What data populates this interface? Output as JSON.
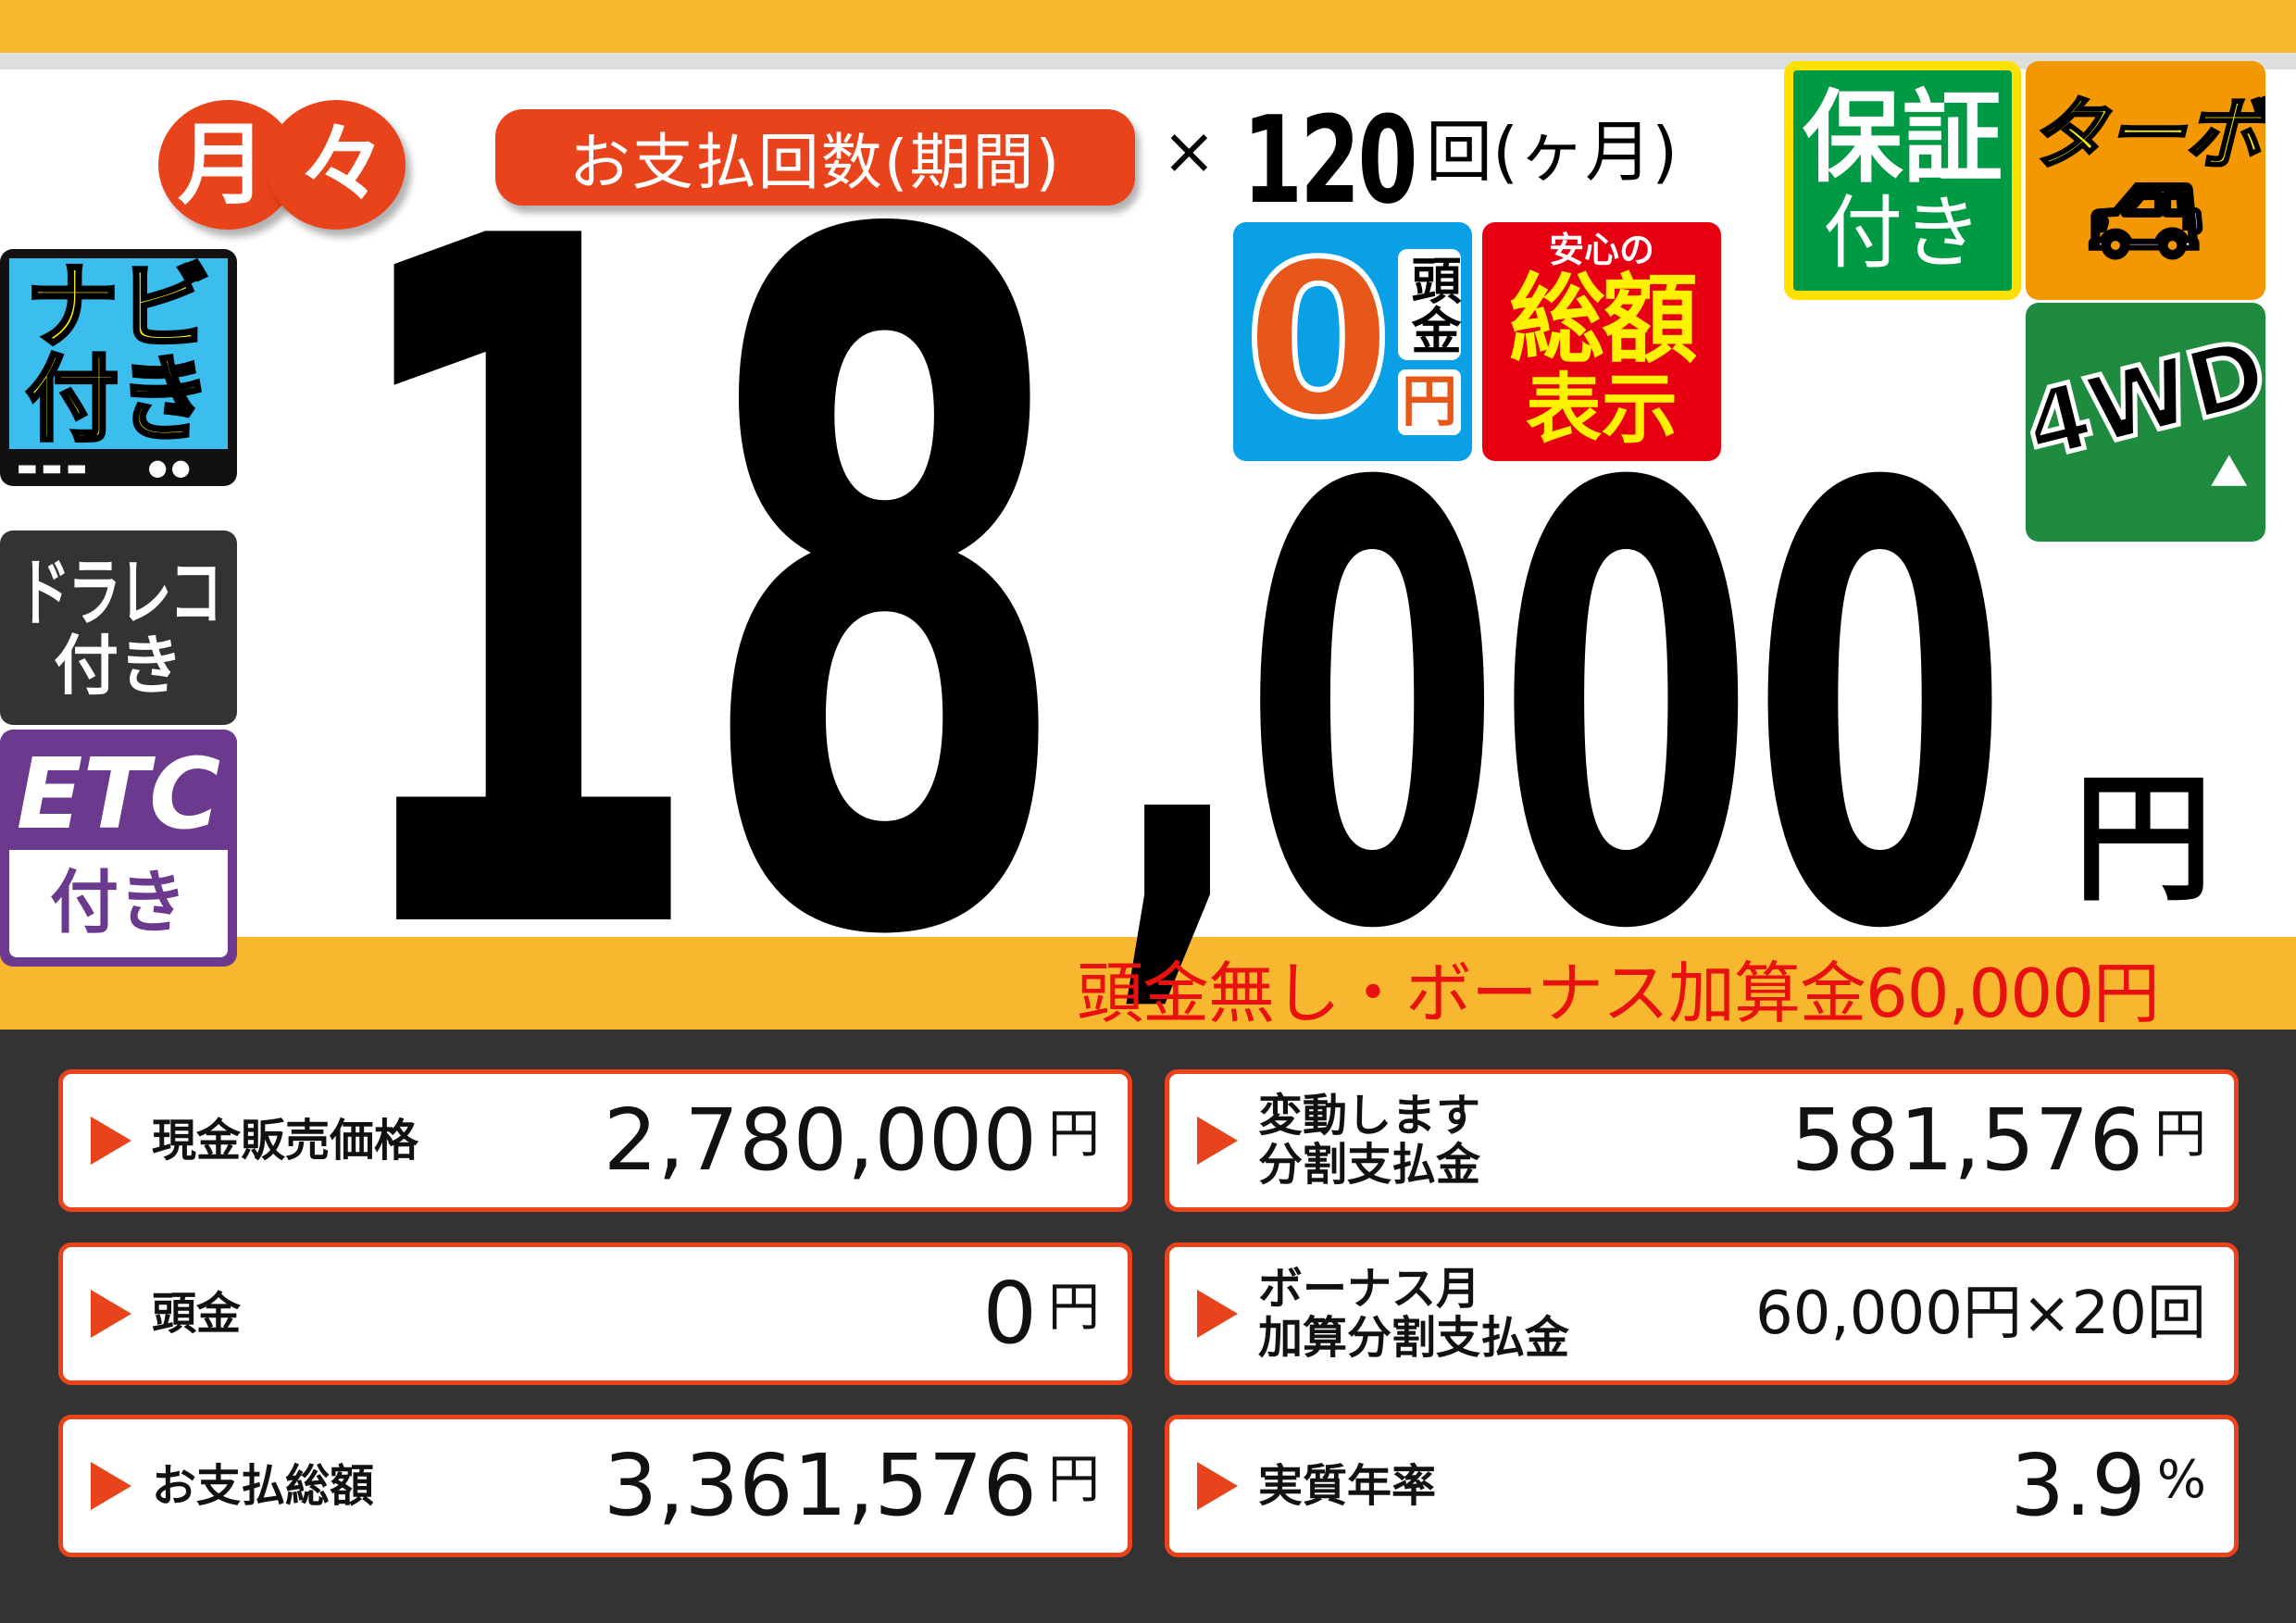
{
  "header": {
    "monthly_label": [
      "月",
      "々"
    ],
    "payment_count_label": "お支払回数(期間)",
    "times_symbol": "×",
    "payment_count": "120",
    "payment_count_unit": "回(ヶ月)"
  },
  "price": {
    "main_digits": "18",
    "rest_digits": ",000",
    "unit": "円",
    "bonus_note": "頭金無し・ボーナス加算金60,000円"
  },
  "badges": {
    "navi": {
      "line1": "ナビ",
      "line2": "付き"
    },
    "drarec": {
      "line1": "ドラレコ",
      "line2": "付き"
    },
    "etc": {
      "line1": "ETC",
      "line2": "付き"
    },
    "down_payment_zero": {
      "zero": "0",
      "label": "頭金",
      "unit": "円"
    },
    "total_display": {
      "small": "安心の",
      "main": "総額",
      "sub": "表示"
    },
    "warranty": {
      "line1": "保証",
      "line2": "付き"
    },
    "turbo": {
      "label": "ターボ",
      "icon": "car-icon"
    },
    "four_wd": {
      "label": "4WD",
      "icon": "offroad-car-icon"
    }
  },
  "details": [
    {
      "label": "現金販売価格",
      "value": "2,780,000",
      "unit": "円"
    },
    {
      "label": "変動します\n分割支払金",
      "value": "581,576",
      "unit": "円"
    },
    {
      "label": "頭金",
      "value": "0",
      "unit": "円"
    },
    {
      "label": "ボーナス月\n加算分割支払金",
      "value": "60,000円×20回",
      "unit": ""
    },
    {
      "label": "お支払総額",
      "value": "3,361,576",
      "unit": "円"
    },
    {
      "label": "実質年率",
      "value": "3.9",
      "unit": "%"
    }
  ],
  "colors": {
    "accent_orange": "#F7B72F",
    "accent_red": "#E8431A",
    "bonus_red": "#E8110F",
    "dark_bg": "#333333"
  }
}
